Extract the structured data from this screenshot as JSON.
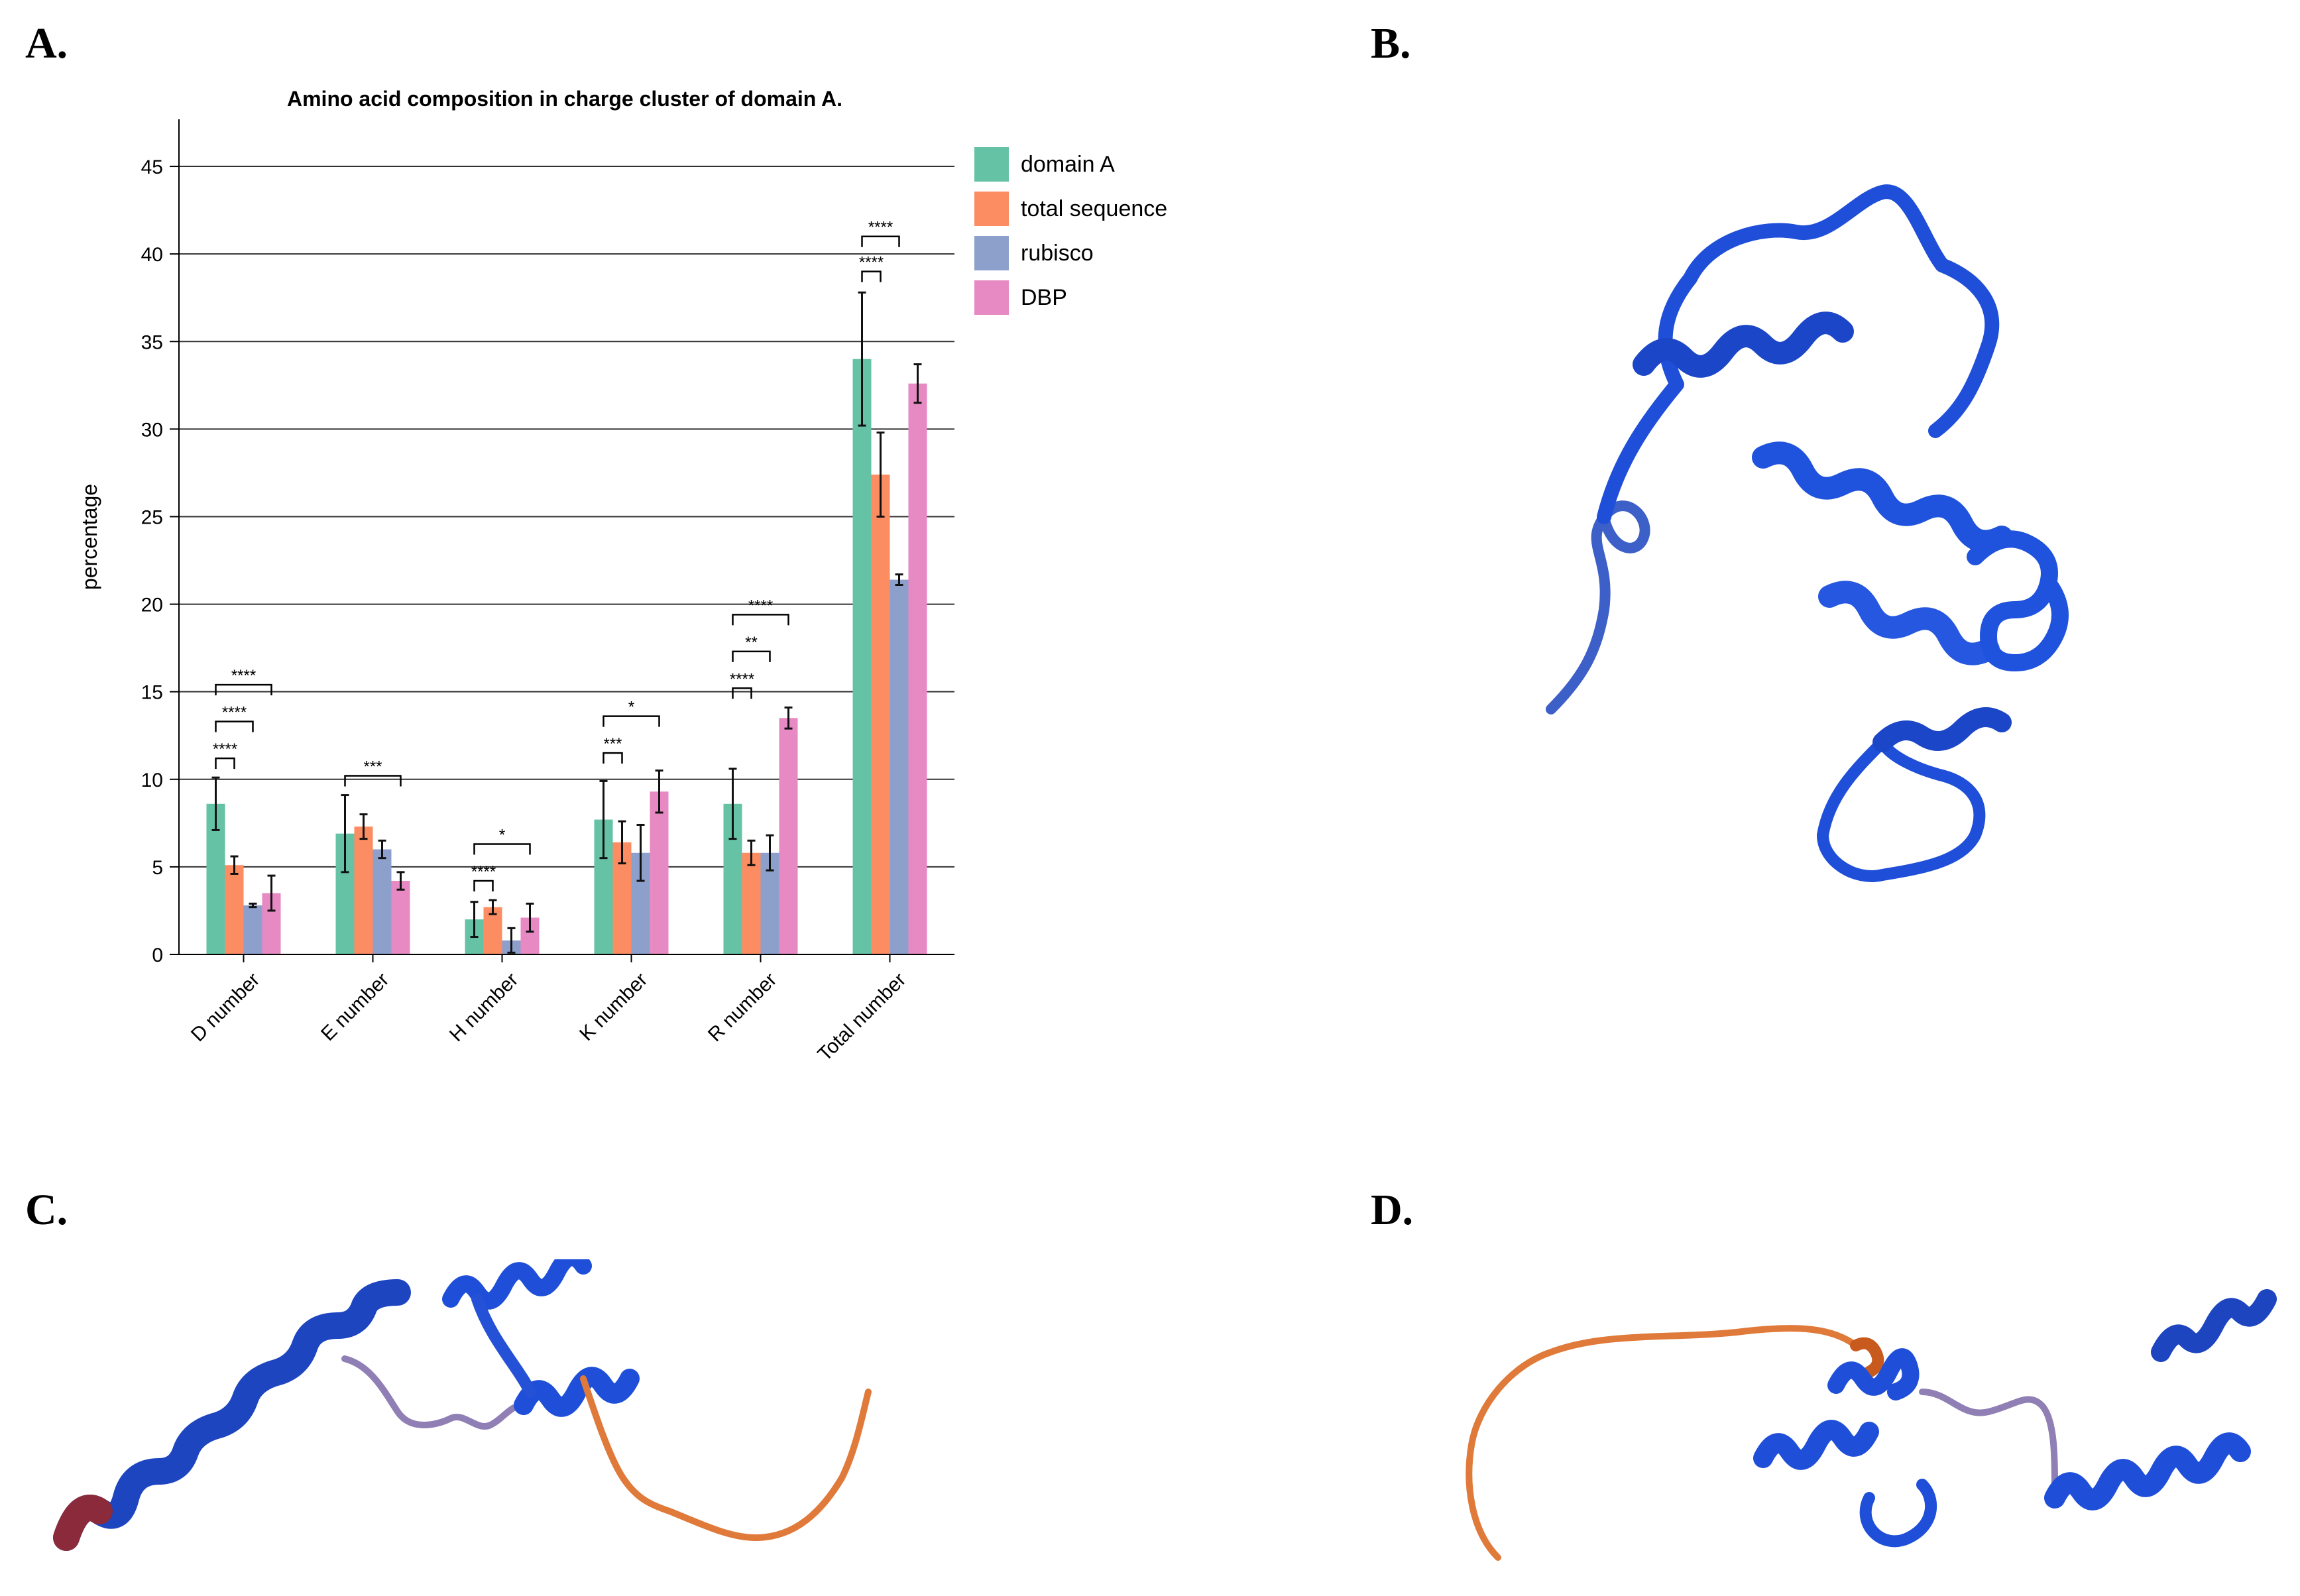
{
  "panels": {
    "a": "A.",
    "b": "B.",
    "c": "C.",
    "d": "D."
  },
  "colors": {
    "domain_a": "#66c2a5",
    "total_sequence": "#fc8d62",
    "rubisco": "#8da0cb",
    "dbp": "#e78ac3",
    "structure_blue": "#1f4fd9",
    "structure_orange": "#e07a3a"
  },
  "chart_data": {
    "type": "bar",
    "title": "Amino acid composition in charge cluster of domain A.",
    "ylabel": "percentage",
    "xlabel": "",
    "ylim": [
      0,
      47.5
    ],
    "yticks": [
      0,
      5,
      10,
      15,
      20,
      25,
      30,
      35,
      40,
      45
    ],
    "grid": true,
    "legend_position": "top-right",
    "categories": [
      "D number",
      "E number",
      "H number",
      "K number",
      "R number",
      "Total number"
    ],
    "series": [
      {
        "name": "domain A",
        "color": "#66c2a5",
        "values": [
          8.6,
          6.9,
          2.0,
          7.7,
          8.6,
          34.0
        ],
        "errors": [
          1.5,
          2.2,
          1.0,
          2.2,
          2.0,
          3.8
        ]
      },
      {
        "name": "total sequence",
        "color": "#fc8d62",
        "values": [
          5.1,
          7.3,
          2.7,
          6.4,
          5.8,
          27.4
        ],
        "errors": [
          0.5,
          0.7,
          0.4,
          1.2,
          0.7,
          2.4
        ]
      },
      {
        "name": "rubisco",
        "color": "#8da0cb",
        "values": [
          2.8,
          6.0,
          0.8,
          5.8,
          5.8,
          21.4
        ],
        "errors": [
          0.1,
          0.5,
          0.7,
          1.6,
          1.0,
          0.3
        ]
      },
      {
        "name": "DBP",
        "color": "#e78ac3",
        "values": [
          3.5,
          4.2,
          2.1,
          9.3,
          13.5,
          32.6
        ],
        "errors": [
          1.0,
          0.5,
          0.8,
          1.2,
          0.6,
          1.1
        ]
      }
    ],
    "significance": [
      {
        "category": 0,
        "from": 0,
        "to": 1,
        "at": 11.2,
        "label": "****"
      },
      {
        "category": 0,
        "from": 0,
        "to": 2,
        "at": 13.3,
        "label": "****"
      },
      {
        "category": 0,
        "from": 0,
        "to": 3,
        "at": 15.4,
        "label": "****"
      },
      {
        "category": 1,
        "from": 0,
        "to": 3,
        "at": 10.2,
        "label": "***"
      },
      {
        "category": 2,
        "from": 0,
        "to": 1,
        "at": 4.2,
        "label": "****"
      },
      {
        "category": 2,
        "from": 0,
        "to": 3,
        "at": 6.3,
        "label": "*"
      },
      {
        "category": 3,
        "from": 0,
        "to": 1,
        "at": 11.5,
        "label": "***"
      },
      {
        "category": 3,
        "from": 0,
        "to": 3,
        "at": 13.6,
        "label": "*"
      },
      {
        "category": 4,
        "from": 0,
        "to": 1,
        "at": 15.2,
        "label": "****"
      },
      {
        "category": 4,
        "from": 0,
        "to": 2,
        "at": 17.3,
        "label": "**"
      },
      {
        "category": 4,
        "from": 0,
        "to": 3,
        "at": 19.4,
        "label": "****"
      },
      {
        "category": 5,
        "from": 0,
        "to": 1,
        "at": 39.0,
        "label": "****"
      },
      {
        "category": 5,
        "from": 0,
        "to": 2,
        "at": 41.0,
        "label": "****"
      }
    ]
  }
}
